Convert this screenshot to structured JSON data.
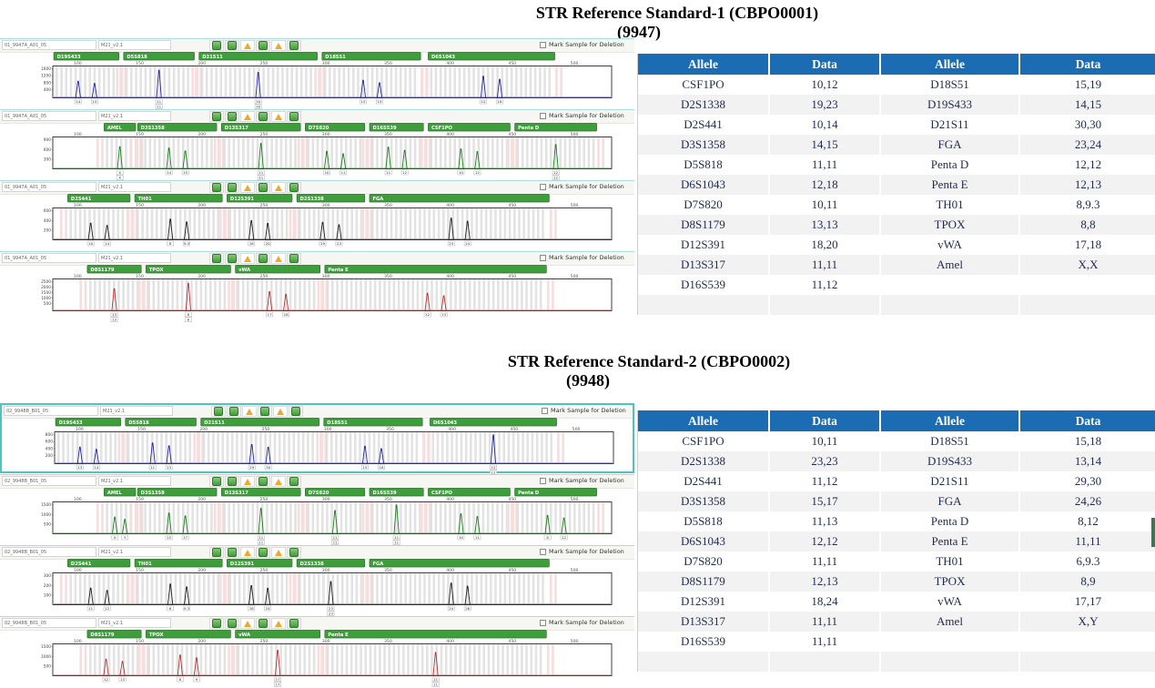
{
  "colors": {
    "header_blue": "#1c6cb4",
    "row_alt": "#f2f2f2",
    "table_text": "#1f2b4a",
    "bar_green": "#3f9e3c",
    "bar_border": "#2c6e2a",
    "bin_gray": "#dcdcdc",
    "bin_pink": "#f7dede",
    "teal": "#4fc3bf",
    "accent_green_strip": "#2e7d4f"
  },
  "panel_common": {
    "deletion_label": "Mark Sample for Deletion",
    "icons": [
      "ok",
      "ok",
      "warn",
      "ok",
      "warn",
      "ok"
    ],
    "xticks": [
      "100",
      "150",
      "200",
      "250",
      "300",
      "350",
      "400",
      "450",
      "500"
    ]
  },
  "section1": {
    "title_line1": "STR Reference Standard-1 (CBPO0001)",
    "title_line2": "(9947)",
    "table": {
      "headers": [
        "Allele",
        "Data",
        "Allele",
        "Data"
      ],
      "rows": [
        [
          "CSF1PO",
          "10,12",
          "D18S51",
          "15,19"
        ],
        [
          "D2S1338",
          "19,23",
          "D19S433",
          "14,15"
        ],
        [
          "D2S441",
          "10,14",
          "D21S11",
          "30,30"
        ],
        [
          "D3S1358",
          "14,15",
          "FGA",
          "23,24"
        ],
        [
          "D5S818",
          "11,11",
          "Penta D",
          "12,12"
        ],
        [
          "D6S1043",
          "12,18",
          "Penta E",
          "12,13"
        ],
        [
          "D7S820",
          "10,11",
          "TH01",
          "8,9.3"
        ],
        [
          "D8S1179",
          "13,13",
          "TPOX",
          "8,8"
        ],
        [
          "D12S391",
          "18,20",
          "vWA",
          "17,18"
        ],
        [
          "D13S317",
          "11,11",
          "Amel",
          "X,X"
        ],
        [
          "D16S539",
          "11,12",
          "",
          ""
        ]
      ]
    },
    "panels": [
      {
        "channel": "blue",
        "trace_color": "#24249a",
        "sample_name": "01_9947A_A01_05",
        "marker_name": "M21_v2.1",
        "yticks": [
          "1600",
          "1200",
          "800",
          "400"
        ],
        "loci": [
          {
            "name": "D19S433",
            "start": 0.005,
            "end": 0.115,
            "alleles": [
              "14",
              "15"
            ]
          },
          {
            "name": "D5S818",
            "start": 0.13,
            "end": 0.25,
            "alleles": [
              "11",
              "11"
            ]
          },
          {
            "name": "D21S11",
            "start": 0.265,
            "end": 0.47,
            "alleles": [
              "30",
              "30"
            ]
          },
          {
            "name": "D18S51",
            "start": 0.485,
            "end": 0.655,
            "alleles": [
              "15",
              "19"
            ]
          },
          {
            "name": "D6S1043",
            "start": 0.675,
            "end": 0.895,
            "alleles": [
              "12",
              "18"
            ]
          }
        ]
      },
      {
        "channel": "green",
        "trace_color": "#1d7a1d",
        "sample_name": "01_9947A_A01_05",
        "marker_name": "M21_v2.1",
        "yticks": [
          "900",
          "600",
          "300"
        ],
        "loci": [
          {
            "name": "AMEL",
            "start": 0.095,
            "end": 0.145,
            "alleles": [
              "X",
              "X"
            ]
          },
          {
            "name": "D3S1358",
            "start": 0.155,
            "end": 0.29,
            "alleles": [
              "14",
              "15"
            ]
          },
          {
            "name": "D13S317",
            "start": 0.305,
            "end": 0.44,
            "alleles": [
              "11",
              "11"
            ]
          },
          {
            "name": "D7S820",
            "start": 0.455,
            "end": 0.555,
            "alleles": [
              "10",
              "11"
            ]
          },
          {
            "name": "D16S539",
            "start": 0.57,
            "end": 0.66,
            "alleles": [
              "11",
              "12"
            ]
          },
          {
            "name": "CSF1PO",
            "start": 0.675,
            "end": 0.815,
            "alleles": [
              "10",
              "12"
            ]
          },
          {
            "name": "Penta D",
            "start": 0.83,
            "end": 0.97,
            "alleles": [
              "12",
              "12"
            ]
          }
        ]
      },
      {
        "channel": "black",
        "trace_color": "#1c1c1c",
        "sample_name": "01_9947A_A01_05",
        "marker_name": "M21_v2.1",
        "yticks": [
          "600",
          "400",
          "200"
        ],
        "loci": [
          {
            "name": "D2S441",
            "start": 0.03,
            "end": 0.135,
            "alleles": [
              "10",
              "14"
            ]
          },
          {
            "name": "TH01",
            "start": 0.15,
            "end": 0.3,
            "alleles": [
              "8",
              "9.3"
            ]
          },
          {
            "name": "D12S391",
            "start": 0.315,
            "end": 0.425,
            "alleles": [
              "18",
              "20"
            ]
          },
          {
            "name": "D2S1338",
            "start": 0.44,
            "end": 0.555,
            "alleles": [
              "19",
              "23"
            ]
          },
          {
            "name": "FGA",
            "start": 0.57,
            "end": 0.885,
            "alleles": [
              "23",
              "24"
            ]
          }
        ]
      },
      {
        "channel": "red",
        "trace_color": "#b03434",
        "sample_name": "01_9947A_A01_05",
        "marker_name": "M21_v2.1",
        "yticks": [
          "2500",
          "2000",
          "1500",
          "1000",
          "500"
        ],
        "loci": [
          {
            "name": "D8S1179",
            "start": 0.065,
            "end": 0.155,
            "alleles": [
              "13",
              "13"
            ]
          },
          {
            "name": "TPOX",
            "start": 0.17,
            "end": 0.315,
            "alleles": [
              "8",
              "8"
            ]
          },
          {
            "name": "vWA",
            "start": 0.33,
            "end": 0.475,
            "alleles": [
              "17",
              "18"
            ]
          },
          {
            "name": "Penta E",
            "start": 0.49,
            "end": 0.88,
            "alleles": [
              "12",
              "13"
            ]
          }
        ]
      }
    ]
  },
  "section2": {
    "title_line1": "STR Reference Standard-2 (CBPO0002)",
    "title_line2": "(9948)",
    "table": {
      "headers": [
        "Allele",
        "Data",
        "Allele",
        "Data"
      ],
      "rows": [
        [
          "CSF1PO",
          "10,11",
          "D18S51",
          "15,18"
        ],
        [
          "D2S1338",
          "23,23",
          "D19S433",
          "13,14"
        ],
        [
          "D2S441",
          "11,12",
          "D21S11",
          "29,30"
        ],
        [
          "D3S1358",
          "15,17",
          "FGA",
          "24,26"
        ],
        [
          "D5S818",
          "11,13",
          "Penta D",
          "8,12"
        ],
        [
          "D6S1043",
          "12,12",
          "Penta E",
          "11,11"
        ],
        [
          "D7S820",
          "11,11",
          "TH01",
          "6,9.3"
        ],
        [
          "D8S1179",
          "12,13",
          "TPOX",
          "8,9"
        ],
        [
          "D12S391",
          "18,24",
          "vWA",
          "17,17"
        ],
        [
          "D13S317",
          "11,11",
          "Amel",
          "X,Y"
        ],
        [
          "D16S539",
          "11,11",
          "",
          ""
        ]
      ]
    },
    "panels": [
      {
        "channel": "blue",
        "trace_color": "#24249a",
        "sample_name": "02_9948B_B01_05",
        "marker_name": "M21_v2.1",
        "yticks": [
          "800",
          "600",
          "400",
          "200"
        ],
        "loci": [
          {
            "name": "D19S433",
            "start": 0.005,
            "end": 0.115,
            "alleles": [
              "13",
              "14"
            ]
          },
          {
            "name": "D5S818",
            "start": 0.13,
            "end": 0.25,
            "alleles": [
              "11",
              "13"
            ]
          },
          {
            "name": "D21S11",
            "start": 0.265,
            "end": 0.47,
            "alleles": [
              "29",
              "30"
            ]
          },
          {
            "name": "D18S51",
            "start": 0.485,
            "end": 0.655,
            "alleles": [
              "15",
              "18"
            ]
          },
          {
            "name": "D6S1043",
            "start": 0.675,
            "end": 0.895,
            "alleles": [
              "12",
              "12"
            ]
          }
        ]
      },
      {
        "channel": "green",
        "trace_color": "#1d7a1d",
        "sample_name": "02_9948B_B01_05",
        "marker_name": "M21_v2.1",
        "yticks": [
          "1500",
          "1000",
          "500"
        ],
        "loci": [
          {
            "name": "AMEL",
            "start": 0.095,
            "end": 0.145,
            "alleles": [
              "X",
              "Y"
            ]
          },
          {
            "name": "D3S1358",
            "start": 0.155,
            "end": 0.29,
            "alleles": [
              "15",
              "17"
            ]
          },
          {
            "name": "D13S317",
            "start": 0.305,
            "end": 0.44,
            "alleles": [
              "11",
              "11"
            ]
          },
          {
            "name": "D7S820",
            "start": 0.455,
            "end": 0.555,
            "alleles": [
              "11",
              "11"
            ]
          },
          {
            "name": "D16S539",
            "start": 0.57,
            "end": 0.66,
            "alleles": [
              "11",
              "11"
            ]
          },
          {
            "name": "CSF1PO",
            "start": 0.675,
            "end": 0.815,
            "alleles": [
              "10",
              "11"
            ]
          },
          {
            "name": "Penta D",
            "start": 0.83,
            "end": 0.97,
            "alleles": [
              "8",
              "12"
            ]
          }
        ]
      },
      {
        "channel": "black",
        "trace_color": "#1c1c1c",
        "sample_name": "02_9948B_B01_05",
        "marker_name": "M21_v2.1",
        "yticks": [
          "300",
          "200",
          "100"
        ],
        "loci": [
          {
            "name": "D2S441",
            "start": 0.03,
            "end": 0.135,
            "alleles": [
              "11",
              "12"
            ]
          },
          {
            "name": "TH01",
            "start": 0.15,
            "end": 0.3,
            "alleles": [
              "6",
              "9.3"
            ]
          },
          {
            "name": "D12S391",
            "start": 0.315,
            "end": 0.425,
            "alleles": [
              "18",
              "24"
            ]
          },
          {
            "name": "D2S1338",
            "start": 0.44,
            "end": 0.555,
            "alleles": [
              "23",
              "23"
            ]
          },
          {
            "name": "FGA",
            "start": 0.57,
            "end": 0.885,
            "alleles": [
              "24",
              "26"
            ]
          }
        ]
      },
      {
        "channel": "red",
        "trace_color": "#b03434",
        "sample_name": "02_9948B_B01_05",
        "marker_name": "M21_v2.1",
        "yticks": [
          "1500",
          "1000",
          "500"
        ],
        "loci": [
          {
            "name": "D8S1179",
            "start": 0.065,
            "end": 0.155,
            "alleles": [
              "12",
              "13"
            ]
          },
          {
            "name": "TPOX",
            "start": 0.17,
            "end": 0.315,
            "alleles": [
              "8",
              "9"
            ]
          },
          {
            "name": "vWA",
            "start": 0.33,
            "end": 0.475,
            "alleles": [
              "17",
              "17"
            ]
          },
          {
            "name": "Penta E",
            "start": 0.49,
            "end": 0.88,
            "alleles": [
              "11",
              "11"
            ]
          }
        ]
      }
    ]
  }
}
